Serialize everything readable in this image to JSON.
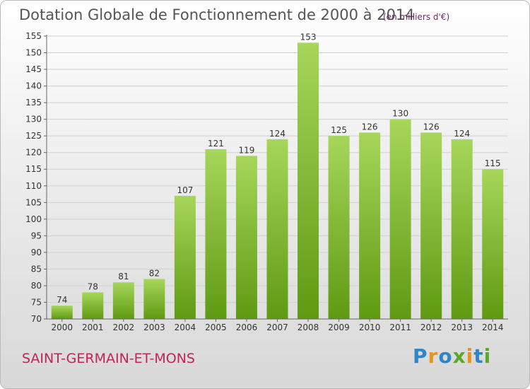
{
  "title": "Dotation Globale de Fonctionnement de 2000 à 2014",
  "unit_note": "(en milliers d'€)",
  "town": "SAINT-GERMAIN-ET-MONS",
  "brand": "Proxiti",
  "colors": {
    "bar_top": "#a6d65a",
    "bar_bottom": "#5f9a12",
    "title": "#555555",
    "town": "#c0245a",
    "gridline": "#d0d0d0"
  },
  "chart_data": {
    "type": "bar",
    "categories": [
      "2000",
      "2001",
      "2002",
      "2003",
      "2004",
      "2005",
      "2006",
      "2007",
      "2008",
      "2009",
      "2010",
      "2011",
      "2012",
      "2013",
      "2014"
    ],
    "values": [
      74,
      78,
      81,
      82,
      107,
      121,
      119,
      124,
      153,
      125,
      126,
      130,
      126,
      124,
      115
    ],
    "title": "Dotation Globale de Fonctionnement de 2000 à 2014",
    "ylim": [
      70,
      155
    ],
    "yticks": [
      70,
      75,
      80,
      85,
      90,
      95,
      100,
      105,
      110,
      115,
      120,
      125,
      130,
      135,
      140,
      145,
      150,
      155
    ],
    "grid": true,
    "data_labels": true
  }
}
